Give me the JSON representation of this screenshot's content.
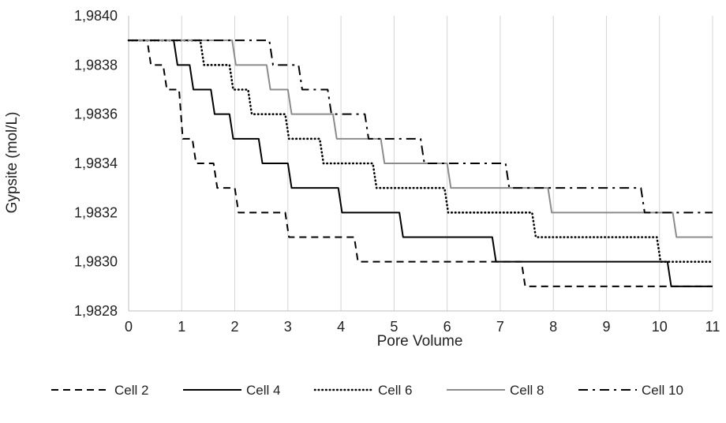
{
  "chart_data": {
    "type": "line",
    "title": "",
    "xlabel": "Pore Volume",
    "ylabel": "Gypsite (mol/L)",
    "xlim": [
      0,
      11
    ],
    "ylim": [
      1.9828,
      1.984
    ],
    "x_ticks": [
      "0",
      "1",
      "2",
      "3",
      "4",
      "5",
      "6",
      "7",
      "8",
      "9",
      "10",
      "11"
    ],
    "y_ticks": [
      "1,9828",
      "1,9830",
      "1,9832",
      "1,9834",
      "1,9836",
      "1,9838",
      "1,9840"
    ],
    "grid": "vertical",
    "legend_position": "bottom",
    "step_shape": "step-down",
    "series": [
      {
        "name": "Cell 2",
        "style": "dashed",
        "color": "#000000",
        "start_value": 1.9839,
        "steps": [
          {
            "x": 0.35,
            "y": 1.9838
          },
          {
            "x": 0.65,
            "y": 1.9837
          },
          {
            "x": 0.95,
            "y": 1.9835
          },
          {
            "x": 1.2,
            "y": 1.9834
          },
          {
            "x": 1.6,
            "y": 1.9833
          },
          {
            "x": 2.0,
            "y": 1.9832
          },
          {
            "x": 2.95,
            "y": 1.9831
          },
          {
            "x": 4.25,
            "y": 1.983
          },
          {
            "x": 7.4,
            "y": 1.9829
          }
        ]
      },
      {
        "name": "Cell 4",
        "style": "solid",
        "color": "#000000",
        "start_value": 1.9839,
        "steps": [
          {
            "x": 0.85,
            "y": 1.9838
          },
          {
            "x": 1.15,
            "y": 1.9837
          },
          {
            "x": 1.55,
            "y": 1.9836
          },
          {
            "x": 1.9,
            "y": 1.9835
          },
          {
            "x": 2.45,
            "y": 1.9834
          },
          {
            "x": 3.0,
            "y": 1.9833
          },
          {
            "x": 3.95,
            "y": 1.9832
          },
          {
            "x": 5.1,
            "y": 1.9831
          },
          {
            "x": 6.85,
            "y": 1.983
          },
          {
            "x": 10.15,
            "y": 1.9829
          }
        ]
      },
      {
        "name": "Cell 6",
        "style": "dotted",
        "color": "#000000",
        "start_value": 1.9839,
        "steps": [
          {
            "x": 1.35,
            "y": 1.9838
          },
          {
            "x": 1.9,
            "y": 1.9837
          },
          {
            "x": 2.25,
            "y": 1.9836
          },
          {
            "x": 2.95,
            "y": 1.9835
          },
          {
            "x": 3.6,
            "y": 1.9834
          },
          {
            "x": 4.6,
            "y": 1.9833
          },
          {
            "x": 5.95,
            "y": 1.9832
          },
          {
            "x": 7.6,
            "y": 1.9831
          },
          {
            "x": 9.95,
            "y": 1.983
          }
        ]
      },
      {
        "name": "Cell 8",
        "style": "solid",
        "color": "#8c8c8c",
        "start_value": 1.9839,
        "steps": [
          {
            "x": 1.95,
            "y": 1.9838
          },
          {
            "x": 2.6,
            "y": 1.9837
          },
          {
            "x": 3.0,
            "y": 1.9836
          },
          {
            "x": 3.85,
            "y": 1.9835
          },
          {
            "x": 4.75,
            "y": 1.9834
          },
          {
            "x": 6.0,
            "y": 1.9833
          },
          {
            "x": 7.9,
            "y": 1.9832
          },
          {
            "x": 10.25,
            "y": 1.9831
          }
        ]
      },
      {
        "name": "Cell 10",
        "style": "dash-dot",
        "color": "#000000",
        "start_value": 1.9839,
        "steps": [
          {
            "x": 2.65,
            "y": 1.9838
          },
          {
            "x": 3.2,
            "y": 1.9837
          },
          {
            "x": 3.75,
            "y": 1.9836
          },
          {
            "x": 4.45,
            "y": 1.9835
          },
          {
            "x": 5.5,
            "y": 1.9834
          },
          {
            "x": 7.1,
            "y": 1.9833
          },
          {
            "x": 9.65,
            "y": 1.9832
          }
        ]
      }
    ]
  }
}
